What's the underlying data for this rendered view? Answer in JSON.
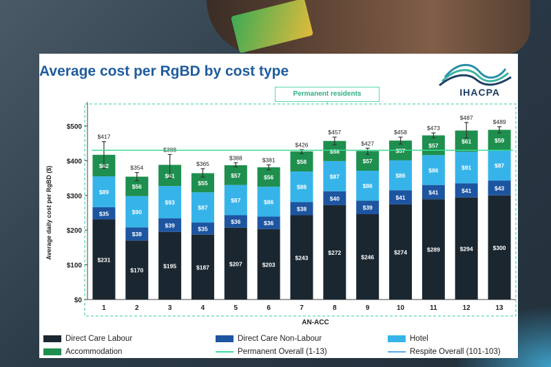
{
  "slide": {
    "title": "Average cost per RgBD by cost type",
    "logo_text": "IHACPA",
    "permanent_label": "Permanent residents"
  },
  "colors": {
    "direct_care_labour": "#1b2730",
    "direct_care_non_labour": "#1d55a0",
    "hotel": "#36b4ea",
    "accommodation": "#1e8f4e",
    "permanent_overall": "#3ddc97",
    "respite_overall": "#5aa9e6",
    "title": "#1f5c9e"
  },
  "chart_data": {
    "type": "bar",
    "stacked": true,
    "title": "",
    "xlabel": "AN-ACC",
    "ylabel": "Average daily cost per RgBD ($)",
    "ylim": [
      0,
      500
    ],
    "yticks": [
      "$0",
      "$100",
      "$200",
      "$300",
      "$400",
      "$500"
    ],
    "categories": [
      "1",
      "2",
      "3",
      "4",
      "5",
      "6",
      "7",
      "8",
      "9",
      "10",
      "11",
      "12",
      "13"
    ],
    "series": [
      {
        "name": "Direct Care Labour",
        "values": [
          231,
          170,
          195,
          187,
          207,
          203,
          243,
          272,
          246,
          274,
          289,
          294,
          300
        ],
        "labels": [
          "$231",
          "$170",
          "$195",
          "$187",
          "$207",
          "$203",
          "$243",
          "$272",
          "$246",
          "$274",
          "$289",
          "$294",
          "$300"
        ]
      },
      {
        "name": "Direct Care Non-Labour",
        "values": [
          35,
          38,
          39,
          35,
          36,
          36,
          38,
          40,
          39,
          41,
          41,
          41,
          43
        ],
        "labels": [
          "$35",
          "$38",
          "$39",
          "$35",
          "$36",
          "$36",
          "$38",
          "$40",
          "$39",
          "$41",
          "$41",
          "$41",
          "$43"
        ]
      },
      {
        "name": "Hotel",
        "values": [
          89,
          90,
          93,
          87,
          87,
          86,
          88,
          87,
          86,
          86,
          86,
          91,
          87
        ],
        "labels": [
          "$89",
          "$90",
          "$93",
          "$87",
          "$87",
          "$86",
          "$88",
          "$87",
          "$86",
          "$86",
          "$86",
          "$91",
          "$87"
        ]
      },
      {
        "name": "Accommodation",
        "values": [
          62,
          56,
          61,
          55,
          57,
          56,
          58,
          58,
          57,
          57,
          57,
          61,
          59
        ],
        "labels": [
          "$62",
          "$56",
          "$61",
          "$55",
          "$57",
          "$56",
          "$58",
          "$58",
          "$57",
          "$57",
          "$57",
          "$61",
          "$59"
        ]
      }
    ],
    "totals": [
      417,
      354,
      388,
      365,
      388,
      381,
      426,
      457,
      427,
      458,
      473,
      487,
      489
    ],
    "total_labels": [
      "$417",
      "$354",
      "$388",
      "$365",
      "$388",
      "$381",
      "$426",
      "$457",
      "$427",
      "$458",
      "$473",
      "$487",
      "$489"
    ],
    "error_bars": [
      [
        378,
        455
      ],
      [
        342,
        366
      ],
      [
        350,
        418
      ],
      [
        353,
        377
      ],
      [
        382,
        394
      ],
      [
        374,
        388
      ],
      [
        420,
        432
      ],
      [
        446,
        468
      ],
      [
        418,
        436
      ],
      [
        448,
        468
      ],
      [
        466,
        480
      ],
      [
        466,
        510
      ],
      [
        480,
        498
      ]
    ],
    "lines": [
      {
        "name": "Permanent Overall (1-13)",
        "value": 430
      },
      {
        "name": "Respite Overall (101-103)",
        "value": null
      }
    ],
    "legend_position": "bottom",
    "grid": false
  },
  "legend": [
    {
      "label": "Direct Care Labour",
      "kind": "swatch",
      "color": "#1b2730"
    },
    {
      "label": "Direct Care Non-Labour",
      "kind": "swatch",
      "color": "#1d55a0"
    },
    {
      "label": "Hotel",
      "kind": "swatch",
      "color": "#36b4ea"
    },
    {
      "label": "Accommodation",
      "kind": "swatch",
      "color": "#1e8f4e"
    },
    {
      "label": "Permanent Overall (1-13)",
      "kind": "line",
      "color": "#3ddc97"
    },
    {
      "label": "Respite Overall (101-103)",
      "kind": "line",
      "color": "#5aa9e6"
    }
  ]
}
